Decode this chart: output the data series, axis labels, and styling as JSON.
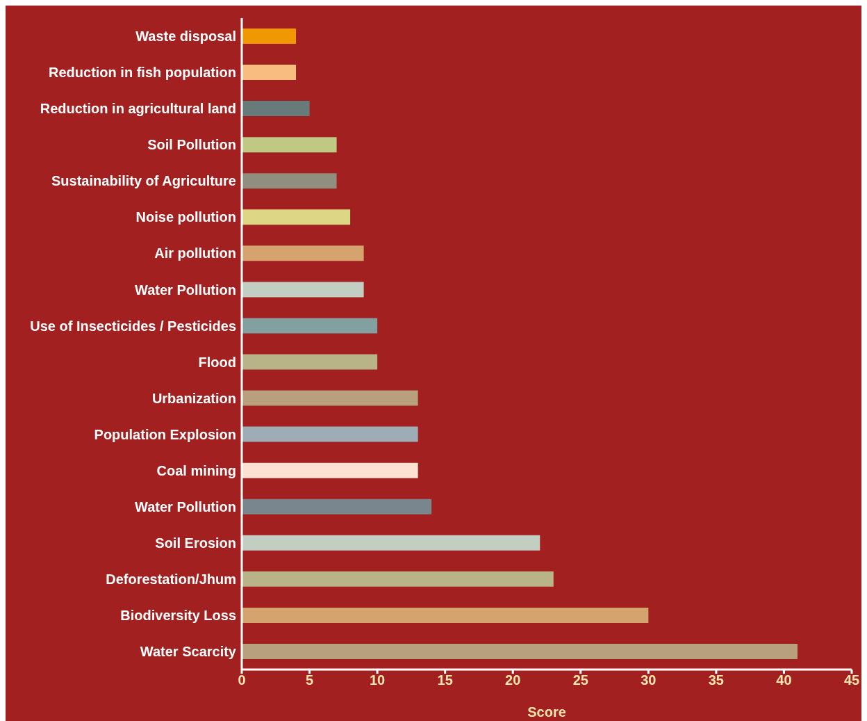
{
  "chart_data": {
    "type": "bar",
    "orientation": "horizontal",
    "xlabel": "Score",
    "categories": [
      "Waste disposal",
      "Reduction in fish population",
      "Reduction in agricultural land",
      "Soil Pollution",
      "Sustainability of Agriculture",
      "Noise pollution",
      "Air pollution",
      "Water Pollution",
      "Use of Insecticides / Pesticides",
      "Flood",
      "Urbanization",
      "Population Explosion",
      "Coal mining",
      "Water Pollution",
      "Soil Erosion",
      "Deforestation/Jhum",
      "Biodiversity Loss",
      "Water Scarcity"
    ],
    "values": [
      4,
      4,
      5,
      7,
      7,
      8,
      9,
      9,
      10,
      10,
      13,
      13,
      13,
      14,
      22,
      23,
      30,
      41
    ],
    "colors": [
      "#f09800",
      "#f7bc80",
      "#677b7b",
      "#c0c984",
      "#908e7e",
      "#ddd684",
      "#d5a36d",
      "#c3cec3",
      "#82a0a0",
      "#b9b488",
      "#b8a07e",
      "#9eacb5",
      "#fde1d3",
      "#79868d",
      "#c3cec3",
      "#b9b488",
      "#d5a36d",
      "#b8a07e"
    ],
    "xlim": [
      0,
      45
    ],
    "xticks": [
      0,
      5,
      10,
      15,
      20,
      25,
      30,
      35,
      40,
      45
    ]
  }
}
